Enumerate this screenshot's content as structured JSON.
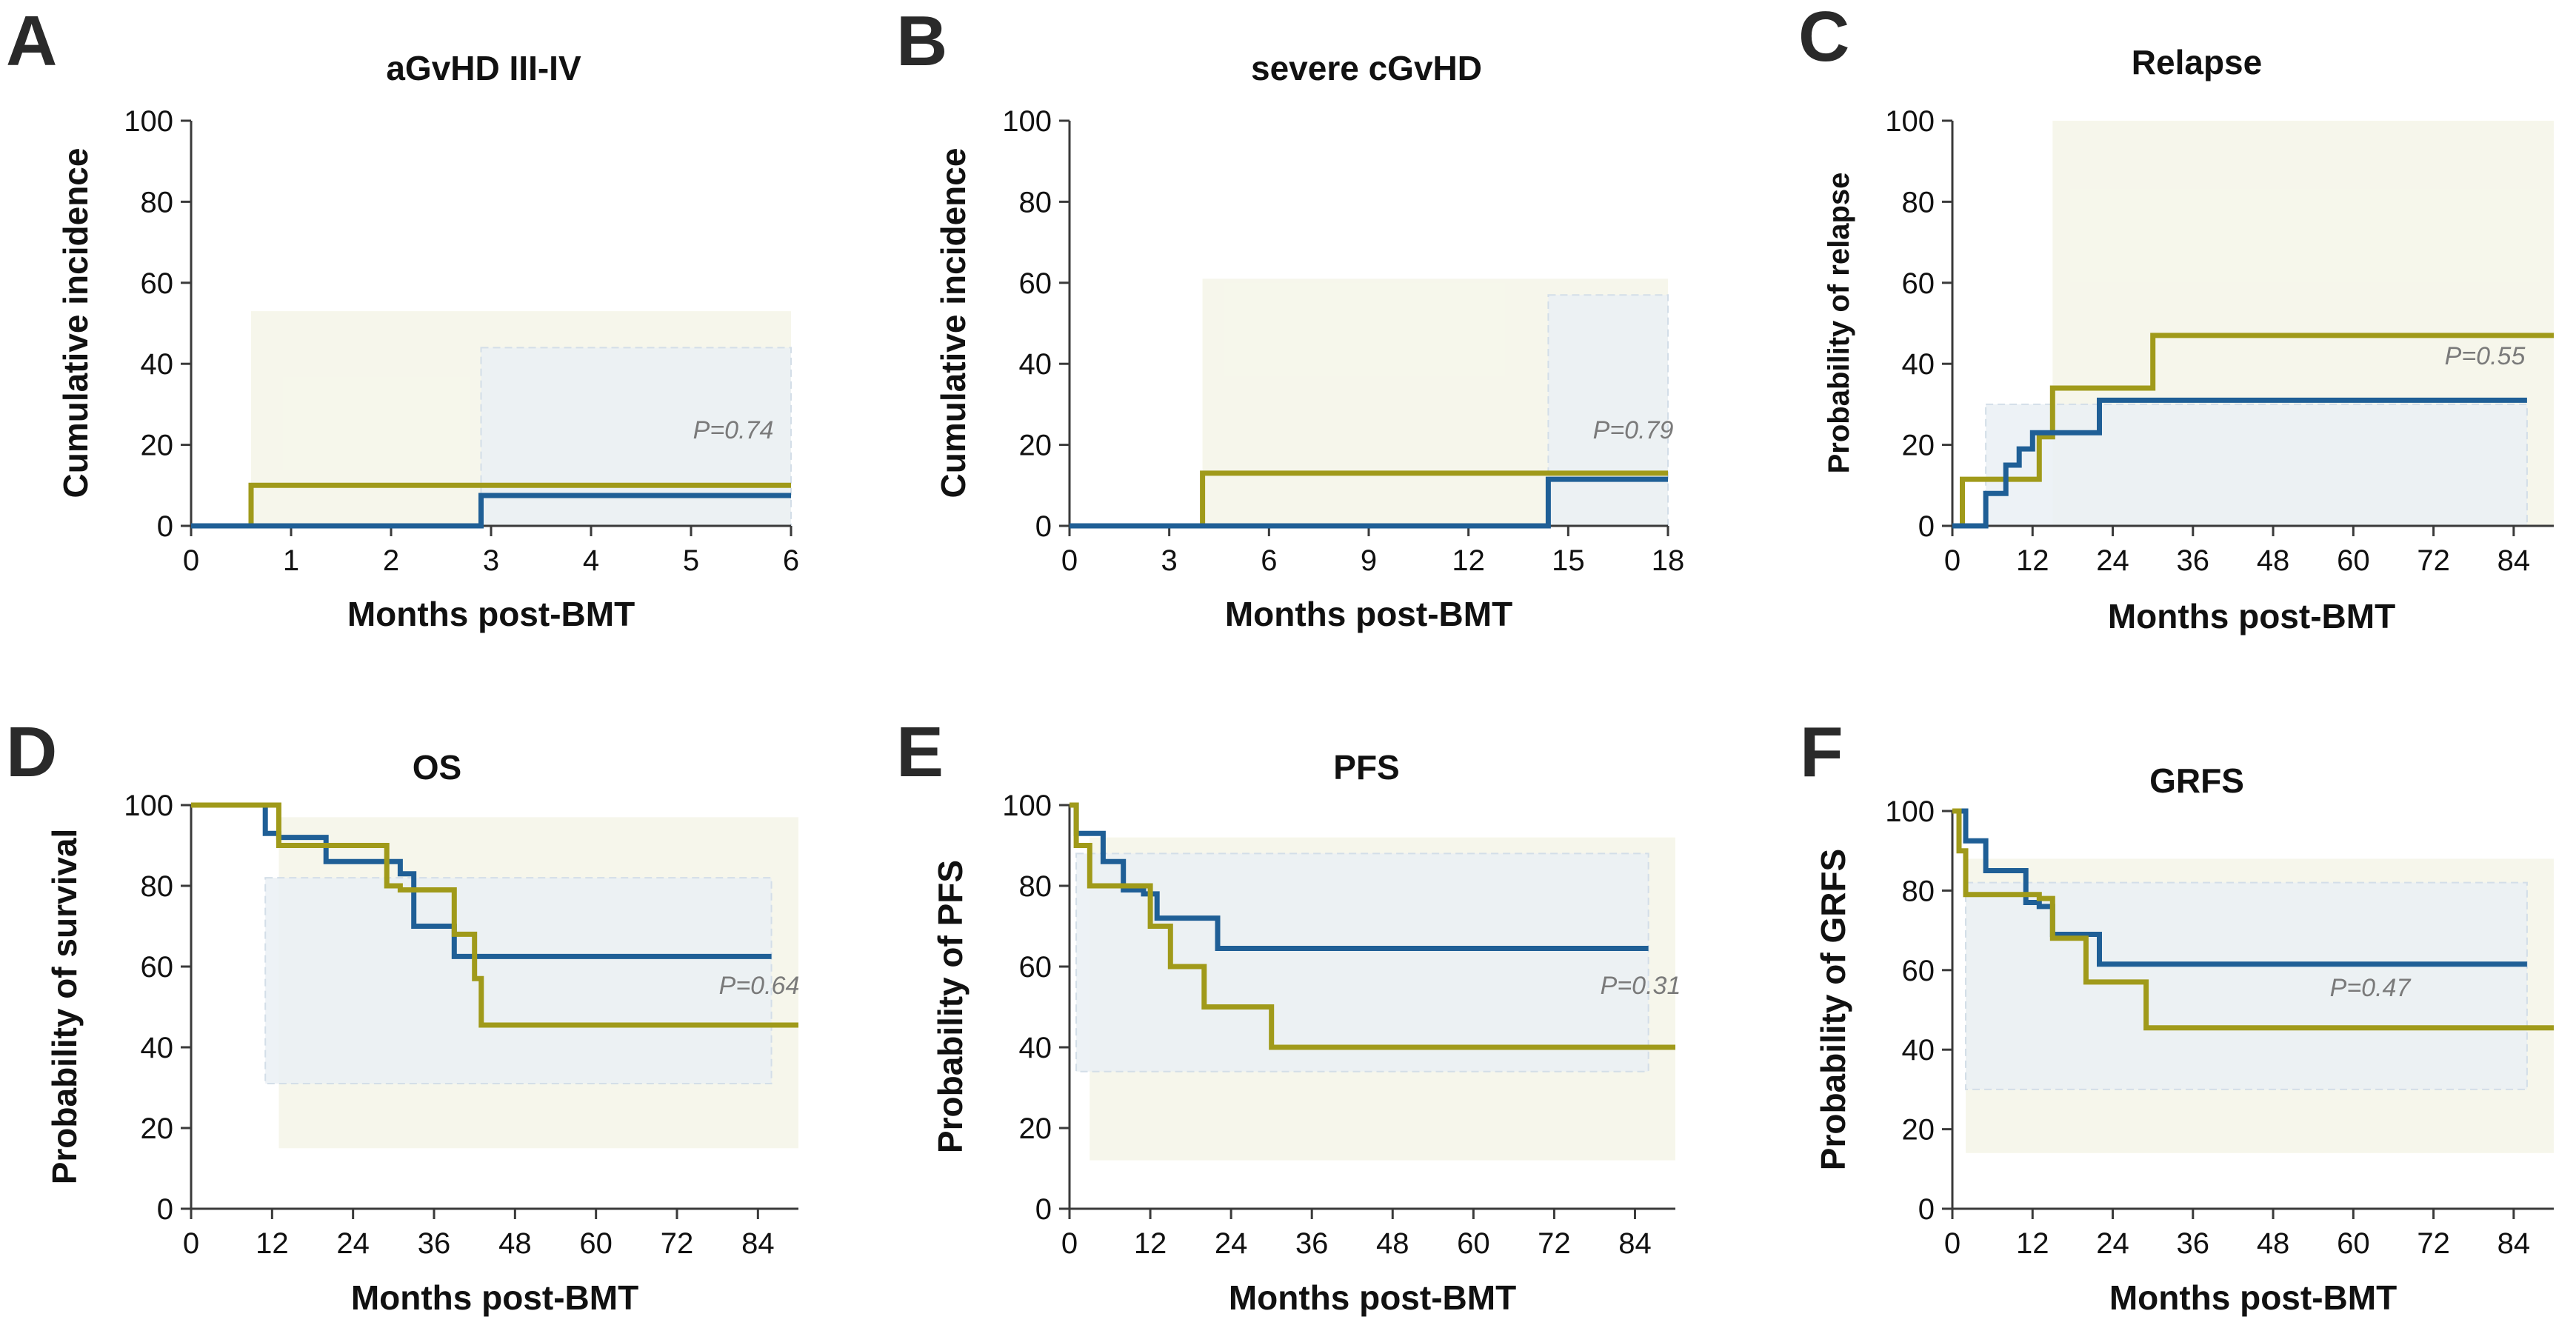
{
  "colors": {
    "blue": "#1f5f96",
    "olive": "#a09a1a",
    "band_olive": "#f4f5e7",
    "band_blue": "#eaf0f4",
    "axis": "#3a3a3a"
  },
  "chart_data": [
    {
      "panel": "A",
      "type": "line",
      "title": "aGvHD III-IV",
      "xlabel": "Months post-BMT",
      "ylabel": "Cumulative incidence",
      "xlim": [
        0,
        6
      ],
      "ylim": [
        0,
        100
      ],
      "xticks": [
        "0",
        "1",
        "2",
        "3",
        "4",
        "5",
        "6"
      ],
      "yticks": [
        "0",
        "20",
        "40",
        "60",
        "80",
        "100"
      ],
      "pvalue": "P=0.74",
      "series": [
        {
          "name": "olive",
          "color": "olive",
          "x": [
            0,
            0.6,
            0.6,
            6
          ],
          "y": [
            0,
            0,
            10,
            10
          ]
        },
        {
          "name": "blue",
          "color": "blue",
          "x": [
            0,
            2.9,
            2.9,
            6
          ],
          "y": [
            0,
            0,
            7.5,
            7.5
          ]
        }
      ],
      "bands": [
        {
          "color": "band_olive",
          "x": [
            0.6,
            6
          ],
          "y": [
            0,
            53
          ]
        },
        {
          "color": "band_blue",
          "x": [
            2.9,
            6
          ],
          "y": [
            0,
            44
          ]
        }
      ]
    },
    {
      "panel": "B",
      "type": "line",
      "title": "severe cGvHD",
      "xlabel": "Months post-BMT",
      "ylabel": "Cumulative incidence",
      "xlim": [
        0,
        18
      ],
      "ylim": [
        0,
        100
      ],
      "xticks": [
        "0",
        "3",
        "6",
        "9",
        "12",
        "15",
        "18"
      ],
      "yticks": [
        "0",
        "20",
        "40",
        "60",
        "80",
        "100"
      ],
      "pvalue": "P=0.79",
      "series": [
        {
          "name": "olive",
          "color": "olive",
          "x": [
            0,
            4,
            4,
            18
          ],
          "y": [
            0,
            0,
            13,
            13
          ]
        },
        {
          "name": "blue",
          "color": "blue",
          "x": [
            0,
            14.4,
            14.4,
            18
          ],
          "y": [
            0,
            0,
            11.5,
            11.5
          ]
        }
      ],
      "bands": [
        {
          "color": "band_olive",
          "x": [
            4,
            18
          ],
          "y": [
            0,
            61
          ]
        },
        {
          "color": "band_blue",
          "x": [
            14.4,
            18
          ],
          "y": [
            0,
            57
          ]
        }
      ]
    },
    {
      "panel": "C",
      "type": "line",
      "title": "Relapse",
      "xlabel": "Months post-BMT",
      "ylabel": "Probability of relapse",
      "xlim": [
        0,
        90
      ],
      "ylim": [
        0,
        100
      ],
      "xticks": [
        "0",
        "12",
        "24",
        "36",
        "48",
        "60",
        "72",
        "84"
      ],
      "xtick_values": [
        0,
        12,
        24,
        36,
        48,
        60,
        72,
        84
      ],
      "yticks": [
        "0",
        "20",
        "40",
        "60",
        "80",
        "100"
      ],
      "pvalue": "P=0.55",
      "series": [
        {
          "name": "olive",
          "color": "olive",
          "x": [
            0,
            1.5,
            1.5,
            13,
            13,
            15,
            15,
            30,
            30,
            90
          ],
          "y": [
            0,
            0,
            11.5,
            11.5,
            22,
            22,
            34,
            34,
            47,
            47
          ]
        },
        {
          "name": "blue",
          "color": "blue",
          "x": [
            0,
            5,
            5,
            8,
            8,
            10,
            10,
            12,
            12,
            22,
            22,
            86
          ],
          "y": [
            0,
            0,
            8,
            8,
            15,
            15,
            19,
            19,
            23,
            23,
            31,
            31
          ]
        }
      ],
      "bands": [
        {
          "color": "band_olive",
          "x": [
            15,
            90
          ],
          "y": [
            0,
            100
          ]
        },
        {
          "color": "band_blue",
          "x": [
            5,
            86
          ],
          "y": [
            0,
            30
          ]
        }
      ]
    },
    {
      "panel": "D",
      "type": "line",
      "title": "OS",
      "xlabel": "Months post-BMT",
      "ylabel": "Probability of survival",
      "xlim": [
        0,
        90
      ],
      "ylim": [
        0,
        100
      ],
      "xticks": [
        "0",
        "12",
        "24",
        "36",
        "48",
        "60",
        "72",
        "84"
      ],
      "xtick_values": [
        0,
        12,
        24,
        36,
        48,
        60,
        72,
        84
      ],
      "yticks": [
        "0",
        "20",
        "40",
        "60",
        "80",
        "100"
      ],
      "pvalue": "P=0.64",
      "series": [
        {
          "name": "blue",
          "color": "blue",
          "x": [
            0,
            11,
            11,
            13,
            13,
            20,
            20,
            31,
            31,
            33,
            33,
            39,
            39,
            86
          ],
          "y": [
            100,
            100,
            93,
            93,
            92,
            92,
            86,
            86,
            83,
            83,
            70,
            70,
            62.5,
            62.5
          ]
        },
        {
          "name": "olive",
          "color": "olive",
          "x": [
            0,
            13,
            13,
            29,
            29,
            31,
            31,
            39,
            39,
            42,
            42,
            43,
            43,
            90
          ],
          "y": [
            100,
            100,
            90,
            90,
            80,
            80,
            79,
            79,
            68,
            68,
            57,
            57,
            45.5,
            45.5
          ]
        }
      ],
      "bands": [
        {
          "color": "band_olive",
          "x": [
            13,
            90
          ],
          "y": [
            15,
            97
          ]
        },
        {
          "color": "band_blue",
          "x": [
            11,
            86
          ],
          "y": [
            31,
            82
          ]
        }
      ]
    },
    {
      "panel": "E",
      "type": "line",
      "title": "PFS",
      "xlabel": "Months post-BMT",
      "ylabel": "Probability of PFS",
      "xlim": [
        0,
        90
      ],
      "ylim": [
        0,
        100
      ],
      "xticks": [
        "0",
        "12",
        "24",
        "36",
        "48",
        "60",
        "72",
        "84"
      ],
      "xtick_values": [
        0,
        12,
        24,
        36,
        48,
        60,
        72,
        84
      ],
      "yticks": [
        "0",
        "20",
        "40",
        "60",
        "80",
        "100"
      ],
      "pvalue": "P=0.31",
      "series": [
        {
          "name": "blue",
          "color": "blue",
          "x": [
            0,
            1,
            1,
            5,
            5,
            8,
            8,
            11,
            11,
            13,
            13,
            22,
            22,
            86
          ],
          "y": [
            100,
            100,
            93,
            93,
            86,
            86,
            79,
            79,
            78,
            78,
            72,
            72,
            64.5,
            64.5
          ]
        },
        {
          "name": "olive",
          "color": "olive",
          "x": [
            0,
            1,
            1,
            3,
            3,
            12,
            12,
            15,
            15,
            20,
            20,
            30,
            30,
            90
          ],
          "y": [
            100,
            100,
            90,
            90,
            80,
            80,
            70,
            70,
            60,
            60,
            50,
            50,
            40,
            40
          ]
        }
      ],
      "bands": [
        {
          "color": "band_olive",
          "x": [
            3,
            90
          ],
          "y": [
            12,
            92
          ]
        },
        {
          "color": "band_blue",
          "x": [
            1,
            86
          ],
          "y": [
            34,
            88
          ]
        }
      ]
    },
    {
      "panel": "F",
      "type": "line",
      "title": "GRFS",
      "xlabel": "Months post-BMT",
      "ylabel": "Probability of GRFS",
      "xlim": [
        0,
        90
      ],
      "ylim": [
        0,
        100
      ],
      "xticks": [
        "0",
        "12",
        "24",
        "36",
        "48",
        "60",
        "72",
        "84"
      ],
      "xtick_values": [
        0,
        12,
        24,
        36,
        48,
        60,
        72,
        84
      ],
      "yticks": [
        "0",
        "20",
        "40",
        "60",
        "80",
        "100"
      ],
      "pvalue": "P=0.47",
      "series": [
        {
          "name": "blue",
          "color": "blue",
          "x": [
            0,
            2,
            2,
            5,
            5,
            11,
            11,
            13,
            13,
            15,
            15,
            22,
            22,
            86
          ],
          "y": [
            100,
            100,
            92.5,
            92.5,
            85,
            85,
            77,
            77,
            76,
            76,
            69,
            69,
            61.5,
            61.5
          ]
        },
        {
          "name": "olive",
          "color": "olive",
          "x": [
            0,
            1,
            1,
            2,
            2,
            13,
            13,
            15,
            15,
            20,
            20,
            29,
            29,
            90
          ],
          "y": [
            100,
            100,
            90,
            90,
            79,
            79,
            78,
            78,
            68,
            68,
            57,
            57,
            45.5,
            45.5
          ]
        }
      ],
      "bands": [
        {
          "color": "band_olive",
          "x": [
            2,
            90
          ],
          "y": [
            14,
            88
          ]
        },
        {
          "color": "band_blue",
          "x": [
            2,
            86
          ],
          "y": [
            30,
            82
          ]
        }
      ]
    }
  ]
}
